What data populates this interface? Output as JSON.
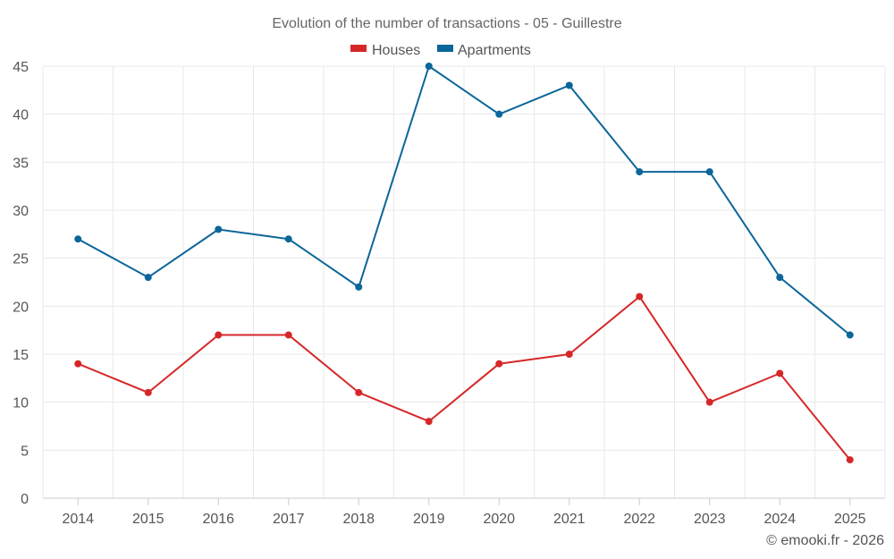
{
  "chart_data": {
    "type": "line",
    "title": "Evolution of the number of transactions - 05 - Guillestre",
    "categories": [
      "2014",
      "2015",
      "2016",
      "2017",
      "2018",
      "2019",
      "2020",
      "2021",
      "2022",
      "2023",
      "2024",
      "2025"
    ],
    "series": [
      {
        "name": "Houses",
        "color": "#d62728",
        "values": [
          14,
          11,
          17,
          17,
          11,
          8,
          14,
          15,
          21,
          10,
          13,
          4
        ]
      },
      {
        "name": "Apartments",
        "color": "#0b6699",
        "values": [
          27,
          23,
          28,
          27,
          22,
          45,
          40,
          43,
          34,
          34,
          23,
          17
        ]
      }
    ],
    "ylim": [
      0,
      45
    ],
    "yticks": [
      0,
      5,
      10,
      15,
      20,
      25,
      30,
      35,
      40,
      45
    ],
    "xlabel": "",
    "ylabel": "",
    "grid": true,
    "legend_position": "top-center"
  },
  "credit": "© emooki.fr - 2026"
}
